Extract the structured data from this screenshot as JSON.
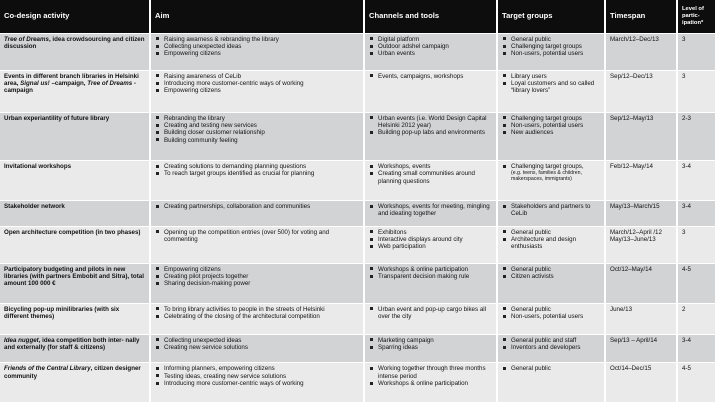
{
  "headers": {
    "activity": "Co-design activity",
    "aim": "Aim",
    "channels": "Channels and tools",
    "targets": "Target groups",
    "timespan": "Timespan",
    "level": "Level of partic- ipation*"
  },
  "rows": [
    {
      "activity_italic": "Tree of Dreams",
      "activity_rest": ", idea crowdsourcing and citizen discussion",
      "aim": [
        "Raising awarness & rebranding the library",
        "Collecting unexpected ideas",
        "Empowering citizens"
      ],
      "channels": [
        "Digital platform",
        "Outdoor adshel campaign",
        "Urban events"
      ],
      "targets": [
        "General public",
        "Challenging target groups",
        "Non-users, potential users"
      ],
      "timespan": "March/12–Dec/13",
      "level": "3"
    },
    {
      "activity_a": "Events in different branch libraries in Helsinki area, ",
      "activity_b_italic": "Signal us!",
      "activity_c": " –campaign, ",
      "activity_d_italic": "Tree of Dreams",
      "activity_e": " -campaign",
      "aim": [
        "Raising awareness of CeLib",
        "Introducing more customer-centric ways of working",
        "Empowering citizens"
      ],
      "channels": [
        "Events, campaigns, workshops"
      ],
      "targets": [
        "Library users",
        "Loyal customers and so called “library lovers”"
      ],
      "timespan": "Sep/12–Dec/13",
      "level": "3"
    },
    {
      "activity": "Urban experiantility of future library",
      "aim": [
        "Rebranding the library",
        "Creating and testing new services",
        "Building closer customer relationship",
        "Building community feeling"
      ],
      "channels": [
        "Urban events (i.e. World Design Capital Helsinki 2012 year)",
        "Building pop-up labs and environments"
      ],
      "targets": [
        "Challenging target groups",
        "Non-users, potential users",
        "New audiences"
      ],
      "timespan": "Sep/12–May/13",
      "level": "2-3"
    },
    {
      "activity": "Invitational workshops",
      "aim": [
        "Creating solutions to demanding planning questions",
        "To reach target groups identified as crucial for planning"
      ],
      "channels": [
        "Workshops, events",
        "Creating small communities around planning questions"
      ],
      "targets_main": "Challenging target groups,",
      "targets_sub": "(e.g. teens, families & children, makerspaces, immigrants)",
      "timespan": "Feb/12–May/14",
      "level": "3-4"
    },
    {
      "activity": "Stakeholder network",
      "aim": [
        "Creating partnerships, collaboration and communities"
      ],
      "channels": [
        "Workshops, events for meeting, mingling and ideating together"
      ],
      "targets": [
        "Stakeholders and partners to CeLib"
      ],
      "timespan": "May/13–March/15",
      "level": "3-4"
    },
    {
      "activity": "Open architecture competition (in two phases)",
      "aim": [
        "Opening up the competition entries (over 500) for voting and commenting"
      ],
      "channels": [
        "Exhibitons",
        "Interactive displays around city",
        "Web participation"
      ],
      "targets": [
        "General public",
        "Architecture and design enthusiasts"
      ],
      "timespan": "March/12–April /12 May/13–June/13",
      "level": "3"
    },
    {
      "activity": "Participatory budgeting and pilots in new libraries (with partners Embobit and Sitra), total amount 100 000 €",
      "aim": [
        "Empowering citizens",
        "Creating pilot projects together",
        "Sharing decision-making power"
      ],
      "channels": [
        "Workshops & online participation",
        "Transparent decision making rule"
      ],
      "targets": [
        "General public",
        "Citizen activists"
      ],
      "timespan": "Oct/12–May/14",
      "level": "4-5"
    },
    {
      "activity": "Bicycling pop-up minilibraries (with six different themes)",
      "aim": [
        "To bring library activities to people in the streets of Helsinki",
        "Celebrating of the closing of the architectural competition"
      ],
      "channels": [
        "Urban event and pop-up cargo bikes all over the city"
      ],
      "targets": [
        "General public",
        "Non-users, potential users"
      ],
      "timespan": "June/13",
      "level": "2"
    },
    {
      "activity_italic": "Idea nugget",
      "activity_rest": ", idea competition both inter- nally and externally (for staff & citizens)",
      "aim": [
        "Collecting unexpected ideas",
        "Creating new service solutions"
      ],
      "channels": [
        "Marketing campaign",
        "Sparring ideas"
      ],
      "targets": [
        "General public and staff",
        "Inventors and developers"
      ],
      "timespan": "Sep/13 – April/14",
      "level": "3-4"
    },
    {
      "activity_italic": "Friends of the Central Library",
      "activity_rest": ", citizen designer community",
      "aim": [
        "Informing planners, empowering citizens",
        "Testing ideas, creating new service solutions",
        "Introducing more customer-centric ways of working"
      ],
      "channels": [
        "Working together through three months intense period",
        "Workshops & online participation"
      ],
      "targets": [
        "General public"
      ],
      "timespan": "Oct/14–Dec/15",
      "level": "4-5"
    }
  ]
}
